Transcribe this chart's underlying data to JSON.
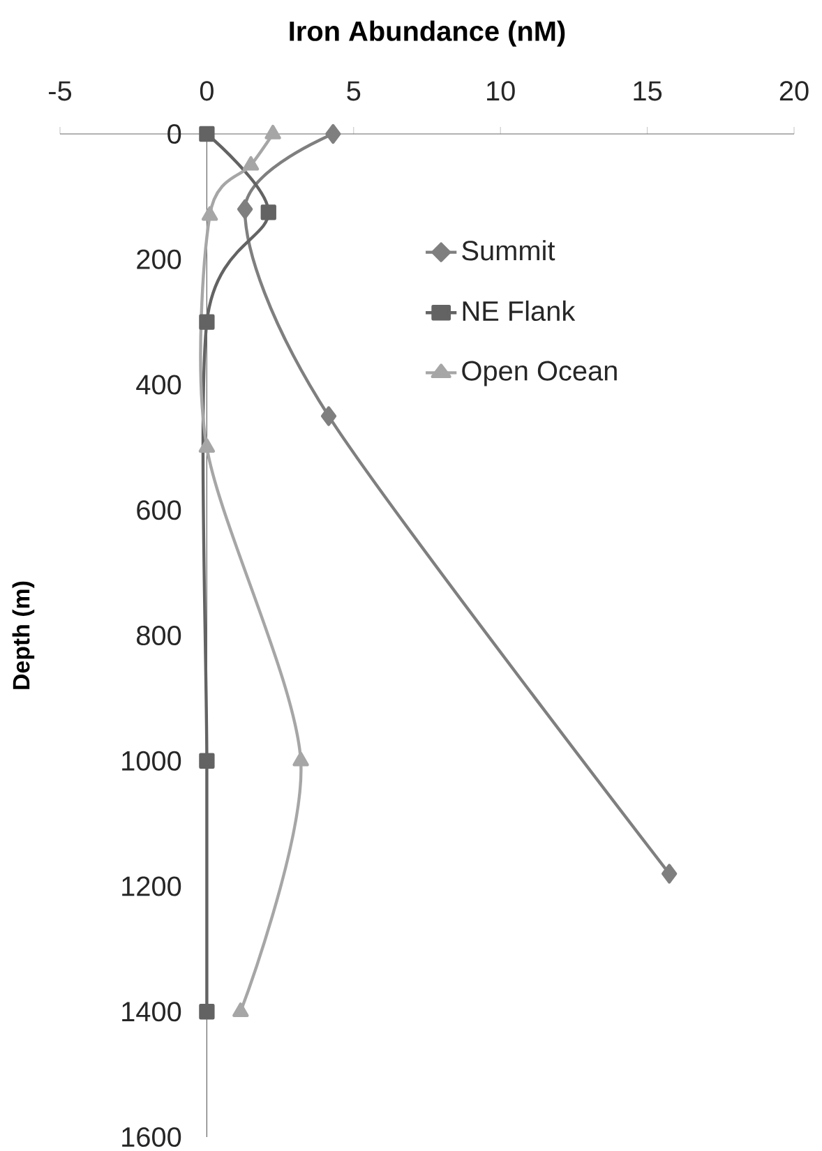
{
  "chart_data": {
    "type": "line",
    "xlabel": "Iron Abundance (nM)",
    "ylabel": "Depth (m)",
    "xlim": [
      -5,
      20
    ],
    "xticks": [
      -5,
      0,
      5,
      10,
      15,
      20
    ],
    "ylim": [
      1600,
      0
    ],
    "yticks": [
      0,
      200,
      400,
      600,
      800,
      1000,
      1200,
      1400,
      1600
    ],
    "grid": false,
    "legend": "top right",
    "line_style": "solid",
    "series": [
      {
        "name": "Summit",
        "color": "#7f7f7f",
        "marker": "diamond",
        "x": [
          4.3,
          1.3,
          4.15,
          15.75
        ],
        "values": [
          0,
          120,
          450,
          1180
        ]
      },
      {
        "name": "NE Flank",
        "color": "#636363",
        "marker": "square",
        "x": [
          0,
          2.1,
          0,
          0,
          0
        ],
        "values": [
          0,
          125,
          300,
          1000,
          1400
        ]
      },
      {
        "name": "Open Ocean",
        "color": "#a6a6a6",
        "marker": "triangle",
        "x": [
          2.25,
          1.5,
          0.1,
          0,
          3.2,
          1.15
        ],
        "values": [
          0,
          50,
          130,
          500,
          1000,
          1400
        ]
      }
    ]
  }
}
